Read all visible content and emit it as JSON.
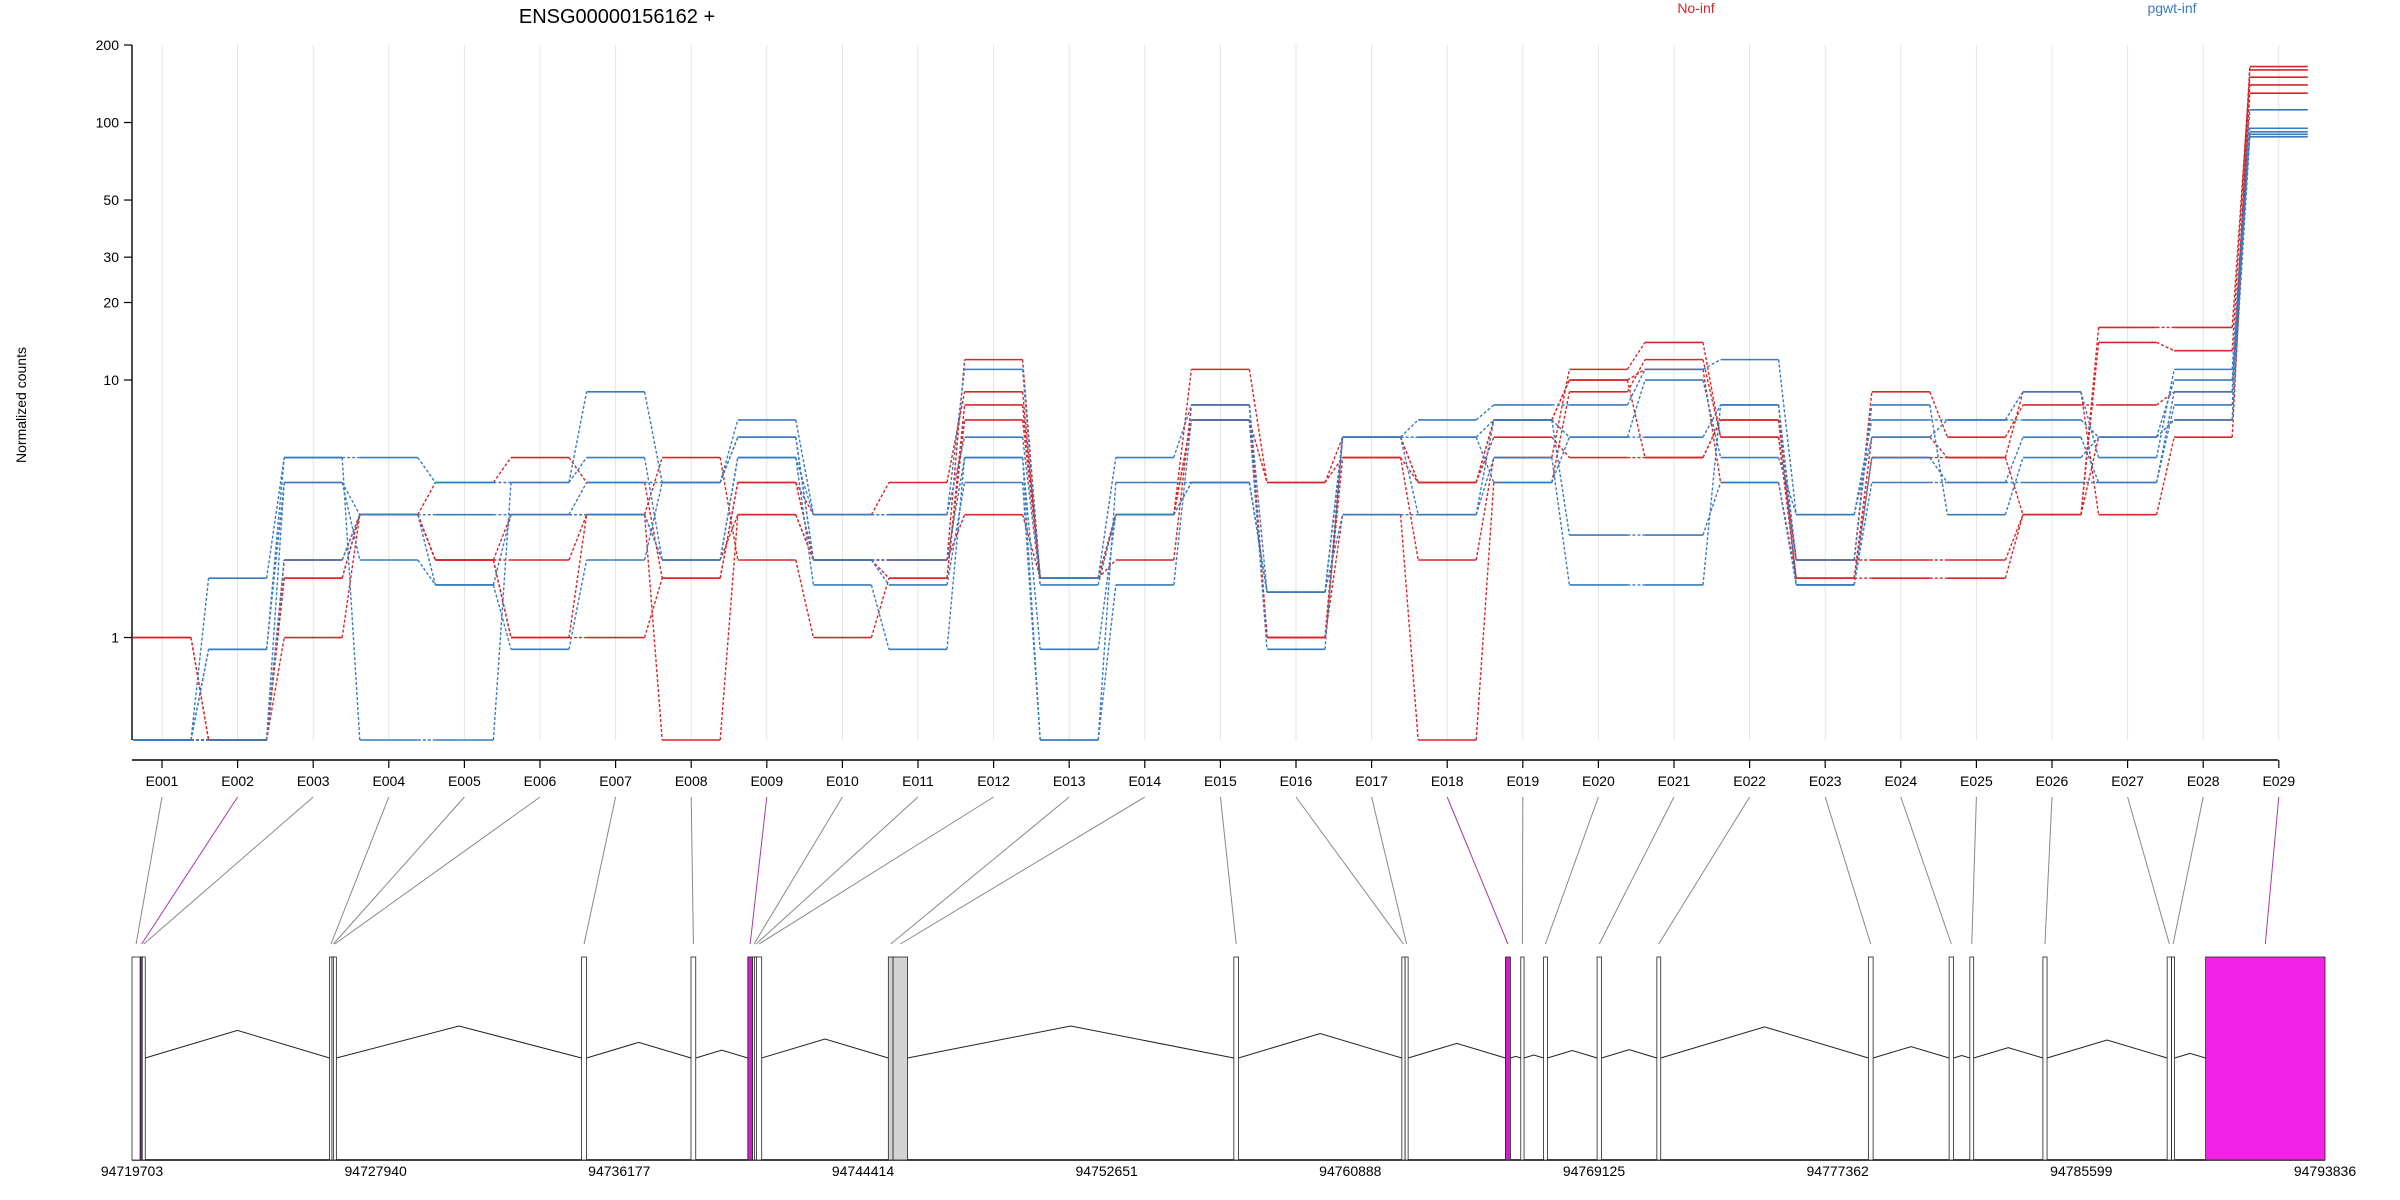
{
  "chart_data": {
    "type": "line",
    "title": "ENSG00000156162 +",
    "ylabel": "Normalized counts",
    "y_scale": "log",
    "ylim": [
      0.4,
      200
    ],
    "y_ticks": [
      1,
      10,
      20,
      30,
      50,
      100,
      200
    ],
    "categories": [
      "E001",
      "E002",
      "E003",
      "E004",
      "E005",
      "E006",
      "E007",
      "E008",
      "E009",
      "E010",
      "E011",
      "E012",
      "E013",
      "E014",
      "E015",
      "E016",
      "E017",
      "E018",
      "E019",
      "E020",
      "E021",
      "E022",
      "E023",
      "E024",
      "E025",
      "E026",
      "E027",
      "E028",
      "E029"
    ],
    "legend": [
      {
        "label": "No-inf",
        "color": "#d62728"
      },
      {
        "label": "pgwt-inf",
        "color": "#3a7bbf"
      }
    ],
    "grid": "vertical",
    "series": [
      {
        "group": "No-inf",
        "color": "#d62728",
        "values": [
          1,
          0.4,
          2,
          3,
          2,
          2,
          3,
          0.4,
          3,
          2,
          2,
          12,
          1.7,
          3,
          11,
          4,
          5,
          2,
          5,
          11,
          14,
          6,
          2,
          2,
          2,
          3,
          14,
          13,
          160
        ]
      },
      {
        "group": "No-inf",
        "color": "#d62728",
        "values": [
          1,
          0.4,
          1.7,
          3,
          2,
          1,
          3,
          5,
          2,
          1,
          1.7,
          8,
          1.7,
          2,
          8,
          1,
          3,
          0.4,
          4,
          9,
          12,
          6,
          1.7,
          1.7,
          1.7,
          3,
          16,
          16,
          150
        ]
      },
      {
        "group": "No-inf",
        "color": "#d62728",
        "values": [
          0.4,
          0.4,
          1,
          3,
          4,
          5,
          4,
          1.7,
          4,
          3,
          4,
          9,
          1.7,
          3,
          7,
          1,
          6,
          4,
          7,
          10,
          5,
          7,
          2,
          9,
          6,
          8,
          8,
          9,
          140
        ]
      },
      {
        "group": "No-inf",
        "color": "#d62728",
        "values": [
          0.4,
          0.4,
          1.7,
          3,
          2,
          3,
          3,
          2,
          3,
          2,
          2,
          3,
          1.7,
          3,
          7,
          4,
          6,
          4,
          6,
          5,
          5,
          7,
          1.7,
          5,
          5,
          9,
          3,
          6,
          130
        ]
      },
      {
        "group": "No-inf",
        "color": "#d62728",
        "values": [
          0.4,
          0.4,
          2,
          3,
          2,
          1,
          1,
          1.7,
          4,
          2,
          1.7,
          7,
          1.7,
          3,
          7,
          1,
          5,
          4,
          7,
          10,
          11,
          4,
          1.7,
          6,
          5,
          3,
          6,
          7,
          165
        ]
      },
      {
        "group": "pgwt-inf",
        "color": "#3a7bbf",
        "values": [
          0.4,
          1.7,
          5,
          5,
          4,
          4,
          9,
          4,
          7,
          3,
          3,
          11,
          1.7,
          5,
          8,
          1.5,
          6,
          7,
          8,
          8,
          11,
          12,
          3,
          7,
          7,
          9,
          5,
          11,
          112
        ]
      },
      {
        "group": "pgwt-inf",
        "color": "#3a7bbf",
        "values": [
          0.4,
          0.9,
          4,
          3,
          3,
          3,
          3,
          2,
          5,
          3,
          3,
          6,
          1.6,
          3,
          4,
          1.5,
          3,
          3,
          7,
          2.5,
          2.5,
          4,
          1.6,
          5,
          4,
          6,
          4,
          8,
          90
        ]
      },
      {
        "group": "pgwt-inf",
        "color": "#3a7bbf",
        "values": [
          0.4,
          0.4,
          2,
          3,
          1.6,
          0.9,
          2,
          4,
          6,
          2,
          2,
          5,
          0.9,
          3,
          4,
          1.5,
          6,
          6,
          4,
          6,
          6,
          8,
          2,
          8,
          3,
          5,
          6,
          7,
          88
        ]
      },
      {
        "group": "pgwt-inf",
        "color": "#3a7bbf",
        "values": [
          0.4,
          0.9,
          5,
          0.4,
          0.4,
          4,
          5,
          2,
          5,
          1.6,
          0.9,
          5,
          0.4,
          1.6,
          7,
          0.9,
          6,
          3,
          5,
          1.6,
          1.6,
          8,
          1.6,
          4,
          4,
          4,
          4,
          9,
          92
        ]
      },
      {
        "group": "pgwt-inf",
        "color": "#3a7bbf",
        "values": [
          0.4,
          0.4,
          4,
          2,
          1.6,
          3,
          4,
          4,
          6,
          2,
          1.6,
          4,
          0.4,
          4,
          4,
          1.5,
          6,
          6,
          7,
          6,
          10,
          5,
          3,
          6,
          7,
          7,
          6,
          10,
          95
        ]
      }
    ],
    "gene_model": {
      "axis_ticks": [
        "94719703",
        "94727940",
        "94736177",
        "94744414",
        "94752651",
        "94760888",
        "94769125",
        "94777362",
        "94785599",
        "94793836"
      ],
      "genomic_range": [
        94719703,
        94793836
      ],
      "exons": [
        {
          "id": "E001",
          "start": 94719703,
          "end": 94719980,
          "color": "#ffffff"
        },
        {
          "id": "E002",
          "start": 94719980,
          "end": 94720050,
          "color": "#8b2c8c"
        },
        {
          "id": "E003",
          "start": 94720050,
          "end": 94720090,
          "color": "#ffffff"
        },
        {
          "id": "E004",
          "start": 94726380,
          "end": 94726460,
          "color": "#ffffff"
        },
        {
          "id": "E005",
          "start": 94726460,
          "end": 94726510,
          "color": "#ffffff"
        },
        {
          "id": "E006",
          "start": 94726510,
          "end": 94726560,
          "color": "#ffffff"
        },
        {
          "id": "E007",
          "start": 94734900,
          "end": 94735070,
          "color": "#ffffff"
        },
        {
          "id": "E008",
          "start": 94738600,
          "end": 94738760,
          "color": "#ffffff"
        },
        {
          "id": "E009",
          "start": 94740520,
          "end": 94740680,
          "color": "#cc22cc"
        },
        {
          "id": "E010",
          "start": 94740680,
          "end": 94740750,
          "color": "#ffffff"
        },
        {
          "id": "E011",
          "start": 94740750,
          "end": 94740810,
          "color": "#ffffff"
        },
        {
          "id": "E012",
          "start": 94740810,
          "end": 94740990,
          "color": "#ffffff"
        },
        {
          "id": "E013",
          "start": 94745270,
          "end": 94745430,
          "color": "#d3d3d3"
        },
        {
          "id": "E014",
          "start": 94745430,
          "end": 94745920,
          "color": "#d3d3d3"
        },
        {
          "id": "E015",
          "start": 94756950,
          "end": 94757110,
          "color": "#ffffff"
        },
        {
          "id": "E016",
          "start": 94762630,
          "end": 94762740,
          "color": "#ffffff"
        },
        {
          "id": "E017",
          "start": 94762740,
          "end": 94762800,
          "color": "#ffffff"
        },
        {
          "id": "E018",
          "start": 94766130,
          "end": 94766300,
          "color": "#cc22cc"
        },
        {
          "id": "E019",
          "start": 94766650,
          "end": 94766760,
          "color": "#ffffff"
        },
        {
          "id": "E020",
          "start": 94767420,
          "end": 94767550,
          "color": "#ffffff"
        },
        {
          "id": "E021",
          "start": 94769230,
          "end": 94769380,
          "color": "#ffffff"
        },
        {
          "id": "E022",
          "start": 94771250,
          "end": 94771380,
          "color": "#ffffff"
        },
        {
          "id": "E023",
          "start": 94778400,
          "end": 94778560,
          "color": "#ffffff"
        },
        {
          "id": "E024",
          "start": 94781130,
          "end": 94781280,
          "color": "#ffffff"
        },
        {
          "id": "E025",
          "start": 94781830,
          "end": 94781960,
          "color": "#ffffff"
        },
        {
          "id": "E026",
          "start": 94784300,
          "end": 94784440,
          "color": "#ffffff"
        },
        {
          "id": "E027",
          "start": 94788500,
          "end": 94788650,
          "color": "#ffffff"
        },
        {
          "id": "E028",
          "start": 94788650,
          "end": 94788700,
          "color": "#ffffff"
        },
        {
          "id": "E029",
          "start": 94789800,
          "end": 94793836,
          "color": "#f222e6"
        }
      ]
    }
  }
}
